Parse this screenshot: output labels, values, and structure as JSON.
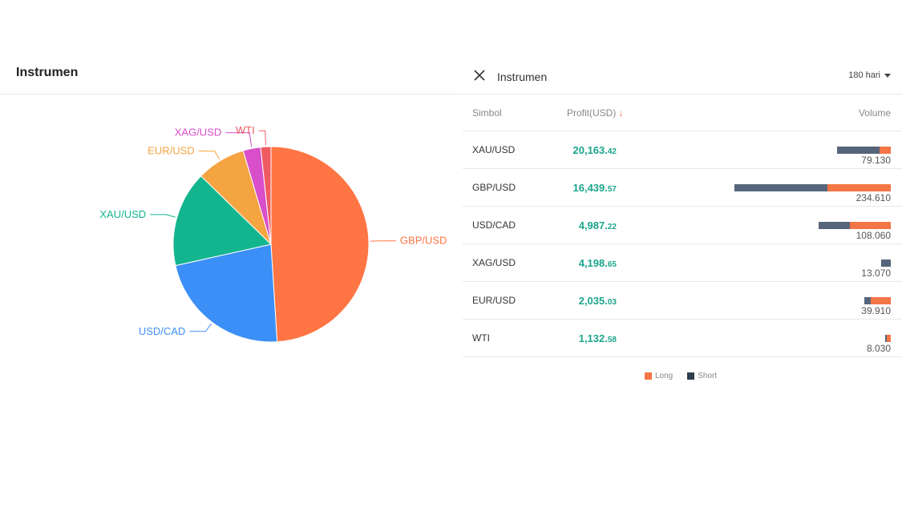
{
  "left": {
    "title": "Instrumen"
  },
  "right": {
    "title": "Instrumen",
    "period": "180 hari",
    "columns": {
      "symbol": "Simbol",
      "profit": "Profit(USD)",
      "sort_arrow": "↓",
      "volume": "Volume"
    },
    "rows": [
      {
        "symbol": "XAU/USD",
        "profit_int": "20,163.",
        "profit_dec": "42",
        "volume": "79.130",
        "short_frac": 0.197,
        "long_frac": 0.052
      },
      {
        "symbol": "GBP/USD",
        "profit_int": "16,439.",
        "profit_dec": "57",
        "volume": "234.610",
        "short_frac": 0.432,
        "long_frac": 0.291
      },
      {
        "symbol": "USD/CAD",
        "profit_int": "4,987.",
        "profit_dec": "22",
        "volume": "108.060",
        "short_frac": 0.147,
        "long_frac": 0.188
      },
      {
        "symbol": "XAG/USD",
        "profit_int": "4,198.",
        "profit_dec": "65",
        "volume": "13.070",
        "short_frac": 0.043,
        "long_frac": 0.0
      },
      {
        "symbol": "EUR/USD",
        "profit_int": "2,035.",
        "profit_dec": "03",
        "volume": "39.910",
        "short_frac": 0.03,
        "long_frac": 0.094
      },
      {
        "symbol": "WTI",
        "profit_int": "1,132.",
        "profit_dec": "58",
        "volume": "8.030",
        "short_frac": 0.009,
        "long_frac": 0.017
      }
    ],
    "legend": {
      "long": "Long",
      "short": "Short"
    },
    "colors": {
      "long": "#f47545",
      "short": "#56657a",
      "profit": "#1aa58b"
    }
  },
  "chart_data": {
    "type": "pie",
    "title": "",
    "slices": [
      {
        "label": "GBP/USD",
        "value": 49.0,
        "color": "#ff7543"
      },
      {
        "label": "USD/CAD",
        "value": 22.5,
        "color": "#3b8ff6"
      },
      {
        "label": "XAU/USD",
        "value": 15.8,
        "color": "#13b58f"
      },
      {
        "label": "EUR/USD",
        "value": 8.1,
        "color": "#f5a442"
      },
      {
        "label": "XAG/USD",
        "value": 2.9,
        "color": "#d84fc9"
      },
      {
        "label": "WTI",
        "value": 1.7,
        "color": "#f05b61"
      }
    ]
  }
}
